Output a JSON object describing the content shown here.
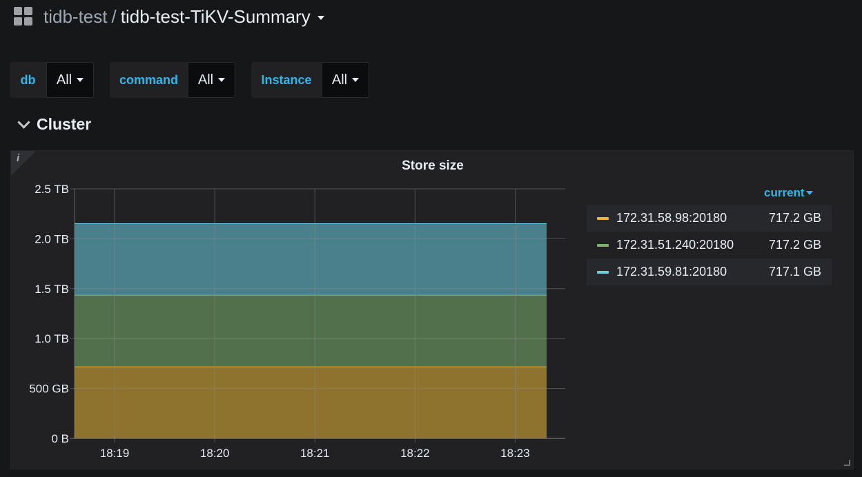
{
  "header": {
    "folder": "tidb-test",
    "separator": "/",
    "title": "tidb-test-TiKV-Summary"
  },
  "variables": [
    {
      "label": "db",
      "value": "All"
    },
    {
      "label": "command",
      "value": "All"
    },
    {
      "label": "Instance",
      "value": "All"
    }
  ],
  "row": {
    "title": "Cluster"
  },
  "panel": {
    "info_icon": "i",
    "title": "Store size",
    "legend_header": "current",
    "legend": [
      {
        "name": "172.31.58.98:20180",
        "value": "717.2 GB",
        "color": "#eab839"
      },
      {
        "name": "172.31.51.240:20180",
        "value": "717.2 GB",
        "color": "#7eb26d"
      },
      {
        "name": "172.31.59.81:20180",
        "value": "717.1 GB",
        "color": "#6ed0e0"
      }
    ]
  },
  "chart_data": {
    "type": "area",
    "title": "Store size",
    "stacked": true,
    "x": [
      "18:19",
      "18:20",
      "18:21",
      "18:22",
      "18:23"
    ],
    "x_range": [
      "18:18.6",
      "18:23.5"
    ],
    "yticks": [
      "0 B",
      "500 GB",
      "1.0 TB",
      "1.5 TB",
      "2.0 TB",
      "2.5 TB"
    ],
    "ylim": [
      0,
      2.5
    ],
    "y_unit": "TB",
    "grid": true,
    "legend_position": "right",
    "series": [
      {
        "name": "172.31.58.98:20180",
        "color": "#eab839",
        "value": 0.7172
      },
      {
        "name": "172.31.51.240:20180",
        "color": "#7eb26d",
        "value": 0.7172
      },
      {
        "name": "172.31.59.81:20180",
        "color": "#6ed0e0",
        "value": 0.7171
      }
    ]
  }
}
